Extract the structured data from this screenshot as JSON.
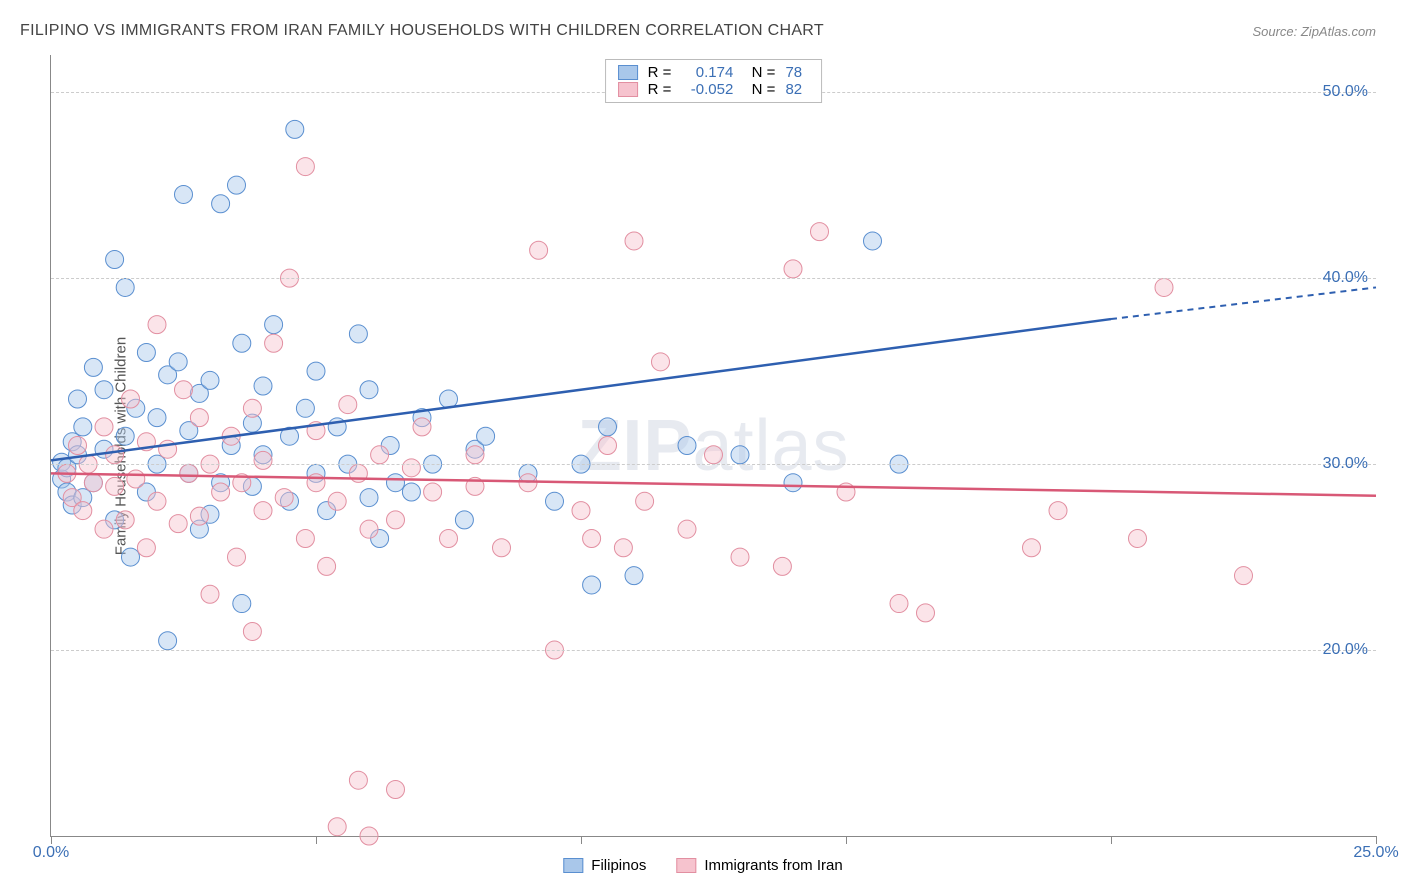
{
  "chart": {
    "type": "scatter",
    "title": "FILIPINO VS IMMIGRANTS FROM IRAN FAMILY HOUSEHOLDS WITH CHILDREN CORRELATION CHART",
    "source": "Source: ZipAtlas.com",
    "ylabel": "Family Households with Children",
    "watermark": "ZIPatlas",
    "background_color": "#ffffff",
    "grid_color": "#cccccc",
    "axis_color": "#888888",
    "tick_label_color": "#3b6fb5",
    "title_fontsize": 16,
    "tick_fontsize": 16,
    "ylabel_fontsize": 15,
    "xlim": [
      0,
      25
    ],
    "ylim": [
      10,
      52
    ],
    "xticks": [
      0,
      5,
      10,
      15,
      20,
      25
    ],
    "xtick_labels": [
      "0.0%",
      "",
      "",
      "",
      "",
      "25.0%"
    ],
    "yticks": [
      20,
      30,
      40,
      50
    ],
    "ytick_labels": [
      "20.0%",
      "30.0%",
      "40.0%",
      "50.0%"
    ],
    "marker_radius": 9,
    "marker_opacity": 0.45,
    "series": [
      {
        "name": "Filipinos",
        "color_fill": "#a9c7ea",
        "color_stroke": "#5a8fd0",
        "line_color": "#2e5fb0",
        "r": "0.174",
        "n": "78",
        "regression": {
          "x1": 0,
          "y1": 30.2,
          "x2": 20,
          "y2": 37.8,
          "x3": 25,
          "y3": 39.5
        },
        "points": [
          [
            0.2,
            29.2
          ],
          [
            0.2,
            30.1
          ],
          [
            0.3,
            28.5
          ],
          [
            0.3,
            29.8
          ],
          [
            0.4,
            31.2
          ],
          [
            0.4,
            27.8
          ],
          [
            0.5,
            30.5
          ],
          [
            0.5,
            33.5
          ],
          [
            0.6,
            28.2
          ],
          [
            0.6,
            32.0
          ],
          [
            0.8,
            35.2
          ],
          [
            0.8,
            29.0
          ],
          [
            1.0,
            34.0
          ],
          [
            1.0,
            30.8
          ],
          [
            1.2,
            41.0
          ],
          [
            1.2,
            27.0
          ],
          [
            1.4,
            31.5
          ],
          [
            1.4,
            39.5
          ],
          [
            1.5,
            25.0
          ],
          [
            1.6,
            33.0
          ],
          [
            1.8,
            36.0
          ],
          [
            1.8,
            28.5
          ],
          [
            2.0,
            32.5
          ],
          [
            2.0,
            30.0
          ],
          [
            2.2,
            34.8
          ],
          [
            2.2,
            20.5
          ],
          [
            2.4,
            35.5
          ],
          [
            2.5,
            44.5
          ],
          [
            2.6,
            29.5
          ],
          [
            2.6,
            31.8
          ],
          [
            2.8,
            26.5
          ],
          [
            2.8,
            33.8
          ],
          [
            3.0,
            27.3
          ],
          [
            3.0,
            34.5
          ],
          [
            3.2,
            44.0
          ],
          [
            3.2,
            29.0
          ],
          [
            3.4,
            31.0
          ],
          [
            3.5,
            45.0
          ],
          [
            3.6,
            36.5
          ],
          [
            3.6,
            22.5
          ],
          [
            3.8,
            32.2
          ],
          [
            3.8,
            28.8
          ],
          [
            4.0,
            30.5
          ],
          [
            4.0,
            34.2
          ],
          [
            4.2,
            37.5
          ],
          [
            4.5,
            28.0
          ],
          [
            4.5,
            31.5
          ],
          [
            4.6,
            48.0
          ],
          [
            4.8,
            33.0
          ],
          [
            5.0,
            29.5
          ],
          [
            5.0,
            35.0
          ],
          [
            5.2,
            27.5
          ],
          [
            5.4,
            32.0
          ],
          [
            5.6,
            30.0
          ],
          [
            5.8,
            37.0
          ],
          [
            6.0,
            28.2
          ],
          [
            6.0,
            34.0
          ],
          [
            6.2,
            26.0
          ],
          [
            6.4,
            31.0
          ],
          [
            6.5,
            29.0
          ],
          [
            6.8,
            28.5
          ],
          [
            7.0,
            32.5
          ],
          [
            7.2,
            30.0
          ],
          [
            7.5,
            33.5
          ],
          [
            7.8,
            27.0
          ],
          [
            8.0,
            30.8
          ],
          [
            8.2,
            31.5
          ],
          [
            9.0,
            29.5
          ],
          [
            9.5,
            28.0
          ],
          [
            10.0,
            30.0
          ],
          [
            10.2,
            23.5
          ],
          [
            10.5,
            32.0
          ],
          [
            11.0,
            24.0
          ],
          [
            12.0,
            31.0
          ],
          [
            13.0,
            30.5
          ],
          [
            14.0,
            29.0
          ],
          [
            15.5,
            42.0
          ],
          [
            16.0,
            30.0
          ]
        ]
      },
      {
        "name": "Immigrants from Iran",
        "color_fill": "#f6c3ce",
        "color_stroke": "#e28fa1",
        "line_color": "#d85876",
        "r": "-0.052",
        "n": "82",
        "regression": {
          "x1": 0,
          "y1": 29.5,
          "x2": 25,
          "y2": 28.3
        },
        "points": [
          [
            0.3,
            29.5
          ],
          [
            0.4,
            28.2
          ],
          [
            0.5,
            31.0
          ],
          [
            0.6,
            27.5
          ],
          [
            0.7,
            30.0
          ],
          [
            0.8,
            29.0
          ],
          [
            1.0,
            32.0
          ],
          [
            1.0,
            26.5
          ],
          [
            1.2,
            28.8
          ],
          [
            1.2,
            30.5
          ],
          [
            1.4,
            27.0
          ],
          [
            1.5,
            33.5
          ],
          [
            1.6,
            29.2
          ],
          [
            1.8,
            25.5
          ],
          [
            1.8,
            31.2
          ],
          [
            2.0,
            28.0
          ],
          [
            2.0,
            37.5
          ],
          [
            2.2,
            30.8
          ],
          [
            2.4,
            26.8
          ],
          [
            2.5,
            34.0
          ],
          [
            2.6,
            29.5
          ],
          [
            2.8,
            32.5
          ],
          [
            2.8,
            27.2
          ],
          [
            3.0,
            30.0
          ],
          [
            3.0,
            23.0
          ],
          [
            3.2,
            28.5
          ],
          [
            3.4,
            31.5
          ],
          [
            3.5,
            25.0
          ],
          [
            3.6,
            29.0
          ],
          [
            3.8,
            33.0
          ],
          [
            3.8,
            21.0
          ],
          [
            4.0,
            27.5
          ],
          [
            4.0,
            30.2
          ],
          [
            4.2,
            36.5
          ],
          [
            4.4,
            28.2
          ],
          [
            4.5,
            40.0
          ],
          [
            4.8,
            26.0
          ],
          [
            4.8,
            46.0
          ],
          [
            5.0,
            29.0
          ],
          [
            5.0,
            31.8
          ],
          [
            5.2,
            24.5
          ],
          [
            5.4,
            28.0
          ],
          [
            5.4,
            10.5
          ],
          [
            5.6,
            33.2
          ],
          [
            5.8,
            29.5
          ],
          [
            5.8,
            13.0
          ],
          [
            6.0,
            26.5
          ],
          [
            6.0,
            10.0
          ],
          [
            6.2,
            30.5
          ],
          [
            6.5,
            27.0
          ],
          [
            6.5,
            12.5
          ],
          [
            6.8,
            29.8
          ],
          [
            7.0,
            32.0
          ],
          [
            7.2,
            28.5
          ],
          [
            7.5,
            26.0
          ],
          [
            8.0,
            28.8
          ],
          [
            8.0,
            30.5
          ],
          [
            8.5,
            25.5
          ],
          [
            9.0,
            29.0
          ],
          [
            9.2,
            41.5
          ],
          [
            9.5,
            20.0
          ],
          [
            10.0,
            27.5
          ],
          [
            10.2,
            26.0
          ],
          [
            10.5,
            31.0
          ],
          [
            10.8,
            25.5
          ],
          [
            11.0,
            42.0
          ],
          [
            11.2,
            28.0
          ],
          [
            11.5,
            35.5
          ],
          [
            12.0,
            26.5
          ],
          [
            12.5,
            30.5
          ],
          [
            13.0,
            25.0
          ],
          [
            13.8,
            24.5
          ],
          [
            14.0,
            40.5
          ],
          [
            14.5,
            42.5
          ],
          [
            15.0,
            28.5
          ],
          [
            16.0,
            22.5
          ],
          [
            16.5,
            22.0
          ],
          [
            18.5,
            25.5
          ],
          [
            19.0,
            27.5
          ],
          [
            20.5,
            26.0
          ],
          [
            21.0,
            39.5
          ],
          [
            22.5,
            24.0
          ]
        ]
      }
    ],
    "legend_bottom": [
      {
        "label": "Filipinos",
        "fill": "#a9c7ea",
        "stroke": "#5a8fd0"
      },
      {
        "label": "Immigrants from Iran",
        "fill": "#f6c3ce",
        "stroke": "#e28fa1"
      }
    ]
  }
}
